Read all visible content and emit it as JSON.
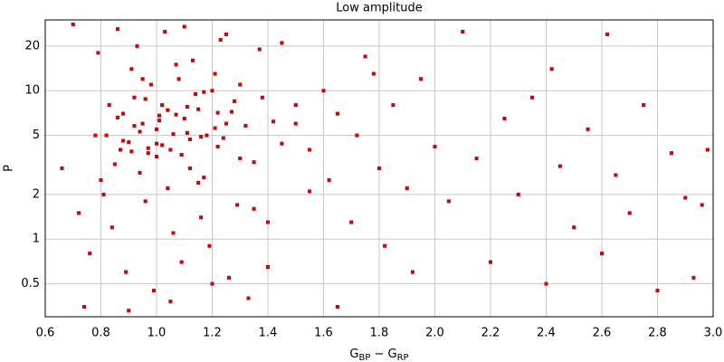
{
  "chart_data": {
    "type": "scatter",
    "title": "Low amplitude",
    "xlabel": [
      "G",
      "BP",
      " − G",
      "RP"
    ],
    "ylabel": "P",
    "xlim": [
      0.6,
      3.0
    ],
    "xticks": [
      {
        "value": 0.6,
        "label": "0.6"
      },
      0.8,
      {
        "value": 1.0,
        "label": "1.0"
      },
      1.2,
      1.4,
      1.6,
      1.8,
      {
        "value": 2.0,
        "label": "2.0"
      },
      2.2,
      2.4,
      2.6,
      2.8,
      {
        "value": 3.0,
        "label": "3.0"
      }
    ],
    "ylim": [
      0.3,
      30
    ],
    "yticks": [
      0.5,
      1,
      2,
      5,
      10,
      20
    ],
    "ylog": true,
    "grid": true,
    "color": "#dd0000",
    "x": [
      0.82,
      0.85,
      0.88,
      0.9,
      0.92,
      0.95,
      0.97,
      1.0,
      1.02,
      1.05,
      1.08,
      1.1,
      1.12,
      1.15,
      1.18,
      1.2,
      1.22,
      1.25,
      1.28,
      1.3,
      0.8,
      0.83,
      0.87,
      0.91,
      0.94,
      0.98,
      1.01,
      1.04,
      1.07,
      1.11,
      1.14,
      1.17,
      1.21,
      1.24,
      1.27,
      1.32,
      1.35,
      1.38,
      1.42,
      1.45,
      0.72,
      0.76,
      0.79,
      0.84,
      0.89,
      0.93,
      0.96,
      0.99,
      1.03,
      1.06,
      1.09,
      1.13,
      1.16,
      1.19,
      1.23,
      1.26,
      1.29,
      1.33,
      1.37,
      1.4,
      0.66,
      0.7,
      0.74,
      0.78,
      0.81,
      0.86,
      0.9,
      0.95,
      1.0,
      1.05,
      1.1,
      1.15,
      1.2,
      1.25,
      1.3,
      1.35,
      1.4,
      1.45,
      1.5,
      1.55,
      1.5,
      1.55,
      1.6,
      1.62,
      1.65,
      1.7,
      1.72,
      1.75,
      1.8,
      1.82,
      1.85,
      1.9,
      1.92,
      1.95,
      2.0,
      2.05,
      2.1,
      2.15,
      2.2,
      2.25,
      2.3,
      2.35,
      2.4,
      2.42,
      2.45,
      2.5,
      2.55,
      2.6,
      2.62,
      2.65,
      2.7,
      2.75,
      2.8,
      2.85,
      2.9,
      2.93,
      2.96,
      2.98,
      1.65,
      1.78,
      0.88,
      0.92,
      0.97,
      1.01,
      1.06,
      1.11,
      1.16,
      1.21,
      0.86,
      0.91,
      0.96,
      1.02,
      1.07,
      1.12,
      1.17,
      1.22,
      0.94,
      1.0,
      1.04,
      1.09
    ],
    "y": [
      5,
      3.2,
      7,
      4.5,
      9,
      6,
      3.8,
      5.5,
      8,
      4,
      12,
      6.5,
      3,
      7.5,
      5,
      10,
      4.2,
      6,
      8.5,
      3.5,
      2.5,
      8,
      4,
      14,
      2.8,
      11,
      6.8,
      2.2,
      15,
      5.2,
      9.5,
      2.6,
      13,
      4.8,
      7.2,
      5.8,
      3.3,
      9,
      6.2,
      4.4,
      1.5,
      0.8,
      18,
      1.2,
      0.6,
      20,
      1.8,
      0.45,
      25,
      1.1,
      0.7,
      16,
      1.4,
      0.9,
      22,
      0.55,
      1.7,
      0.4,
      19,
      1.3,
      3,
      28,
      0.35,
      5,
      2,
      26,
      0.33,
      12,
      3.6,
      0.38,
      27,
      2.4,
      0.5,
      24,
      11,
      1.6,
      0.65,
      21,
      8,
      2.1,
      6,
      4,
      10,
      2.5,
      7,
      1.3,
      5,
      17,
      3,
      0.9,
      8,
      2.2,
      0.6,
      12,
      4.2,
      1.8,
      25,
      3.5,
      0.7,
      6.5,
      2,
      9,
      0.5,
      14,
      3.1,
      1.2,
      5.5,
      0.8,
      24,
      2.7,
      1.5,
      8,
      0.45,
      3.8,
      1.9,
      0.55,
      1.7,
      4,
      0.35,
      13,
      4.6,
      5.8,
      4.1,
      6.3,
      5.1,
      7.8,
      4.9,
      5.6,
      6.6,
      3.9,
      8.8,
      4.3,
      6.9,
      4.7,
      9.8,
      7.1,
      5.3,
      4.4,
      7.4,
      3.7
    ]
  }
}
